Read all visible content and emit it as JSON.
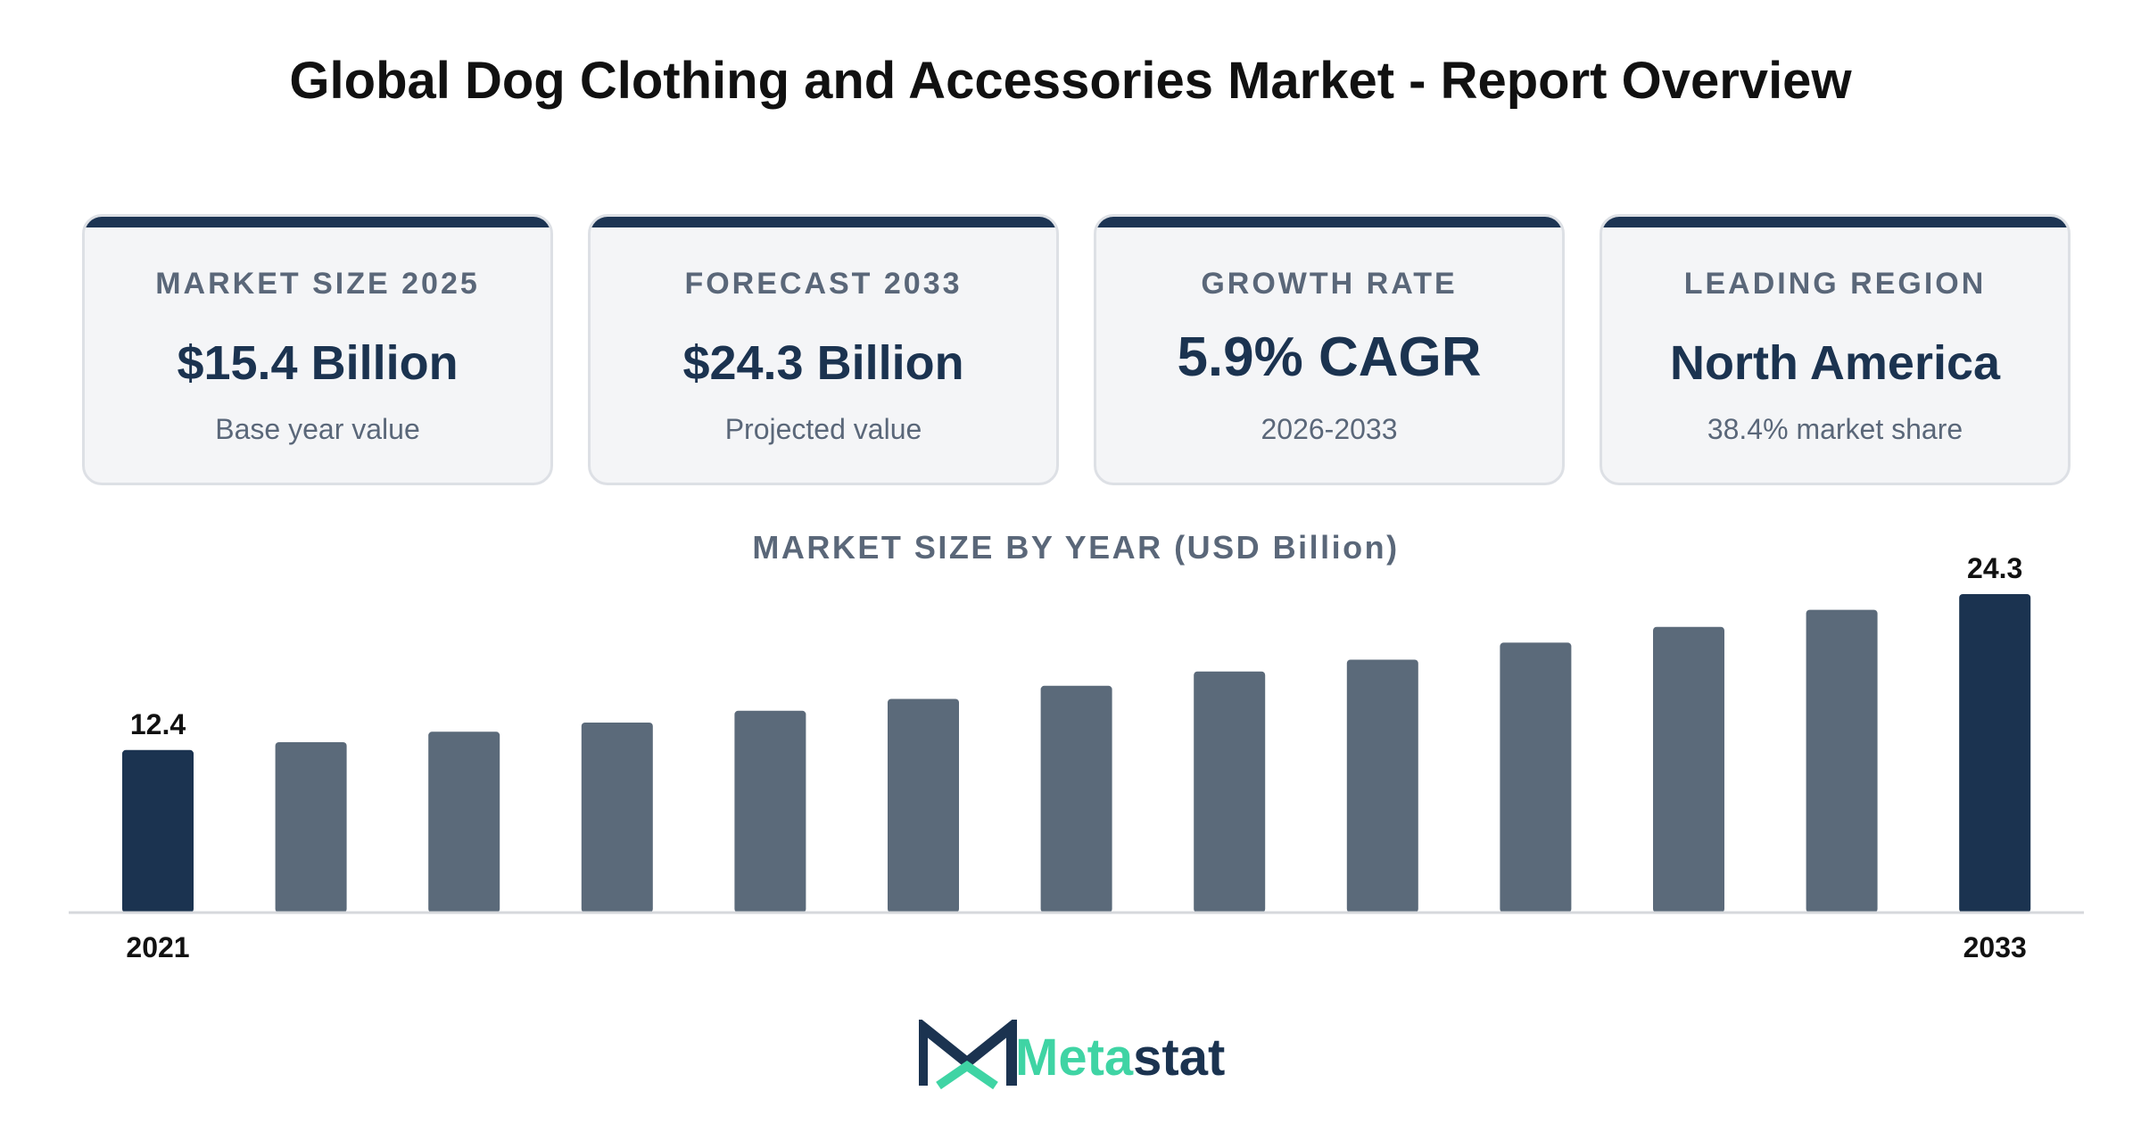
{
  "header": {
    "title": "Global Dog Clothing and Accessories Market - Report Overview"
  },
  "cards": [
    {
      "label": "MARKET SIZE 2025",
      "value": "$15.4 Billion",
      "sub": "Base year value"
    },
    {
      "label": "FORECAST 2033",
      "value": "$24.3 Billion",
      "sub": "Projected value"
    },
    {
      "label": "GROWTH RATE",
      "value": "5.9% CAGR",
      "sub": "2026-2033"
    },
    {
      "label": "LEADING REGION",
      "value": "North America",
      "sub": "38.4% market share"
    }
  ],
  "chart_data": {
    "type": "bar",
    "title": "MARKET SIZE BY YEAR (USD Billion)",
    "categories": [
      "2021",
      "2022",
      "2023",
      "2024",
      "2025",
      "2026",
      "2027",
      "2028",
      "2029",
      "2030",
      "2031",
      "2032",
      "2033"
    ],
    "visible_tick_labels": [
      "2021",
      "2033"
    ],
    "values": [
      12.4,
      13.0,
      13.8,
      14.5,
      15.4,
      16.3,
      17.3,
      18.4,
      19.3,
      20.6,
      21.8,
      23.1,
      24.3
    ],
    "data_labels": [
      {
        "category": "2021",
        "text": "12.4"
      },
      {
        "category": "2033",
        "text": "24.3"
      }
    ],
    "ylim": [
      0,
      24.3
    ],
    "grid": false,
    "colors": {
      "highlight": "#1b3350",
      "default": "#5b6a7a",
      "axis": "#d6d8dc"
    }
  },
  "brand": {
    "logo_text_part1": "Meta",
    "logo_text_part2": "stat",
    "colors": {
      "dark": "#1b3350",
      "accent": "#3fd4a4"
    }
  }
}
